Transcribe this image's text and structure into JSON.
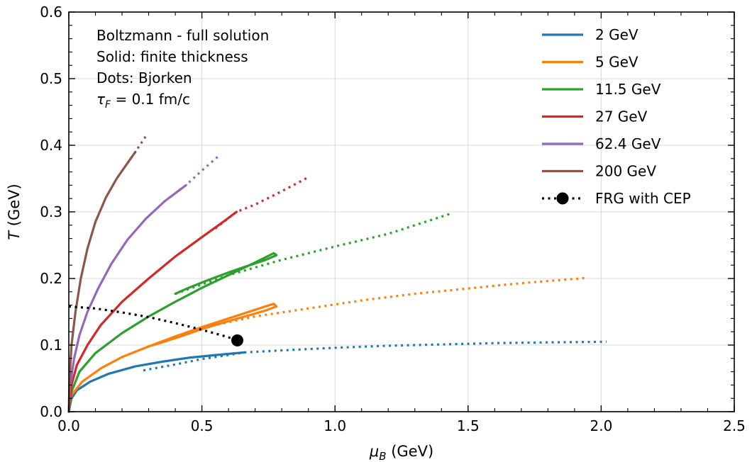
{
  "chart_data": {
    "type": "line",
    "xlabel": "μ_B (GeV)",
    "ylabel": "T (GeV)",
    "xlim": [
      0.0,
      2.5
    ],
    "ylim": [
      0.0,
      0.6
    ],
    "xticks": [
      0.0,
      0.5,
      1.0,
      1.5,
      2.0,
      2.5
    ],
    "xtick_labels": [
      "0.0",
      "0.5",
      "1.0",
      "1.5",
      "2.0",
      "2.5"
    ],
    "yticks": [
      0.0,
      0.1,
      0.2,
      0.3,
      0.4,
      0.5,
      0.6
    ],
    "ytick_labels": [
      "0.0",
      "0.1",
      "0.2",
      "0.3",
      "0.4",
      "0.5",
      "0.6"
    ],
    "grid": true,
    "legend_position": "top-right",
    "annotations": [
      "Boltzmann - full solution",
      "Solid: finite thickness",
      "Dots: Bjorken",
      "τ_F = 0.1 fm/c"
    ],
    "series": [
      {
        "name": "2 GeV",
        "color": "#1f77b4",
        "solid": [
          [
            0.0,
            0.0
          ],
          [
            0.01,
            0.02
          ],
          [
            0.03,
            0.032
          ],
          [
            0.08,
            0.045
          ],
          [
            0.15,
            0.057
          ],
          [
            0.25,
            0.068
          ],
          [
            0.35,
            0.075
          ],
          [
            0.45,
            0.081
          ],
          [
            0.55,
            0.085
          ],
          [
            0.63,
            0.088
          ],
          [
            0.66,
            0.089
          ]
        ],
        "dotted": [
          [
            0.28,
            0.062
          ],
          [
            0.4,
            0.071
          ],
          [
            0.5,
            0.079
          ],
          [
            0.6,
            0.085
          ],
          [
            0.66,
            0.089
          ],
          [
            0.8,
            0.092
          ],
          [
            1.0,
            0.096
          ],
          [
            1.2,
            0.099
          ],
          [
            1.4,
            0.101
          ],
          [
            1.6,
            0.103
          ],
          [
            1.8,
            0.104
          ],
          [
            2.02,
            0.105
          ]
        ]
      },
      {
        "name": "5 GeV",
        "color": "#ff7f0e",
        "solid": [
          [
            0.0,
            0.0
          ],
          [
            0.01,
            0.025
          ],
          [
            0.05,
            0.045
          ],
          [
            0.12,
            0.065
          ],
          [
            0.2,
            0.082
          ],
          [
            0.3,
            0.098
          ],
          [
            0.4,
            0.113
          ],
          [
            0.5,
            0.127
          ],
          [
            0.6,
            0.14
          ],
          [
            0.7,
            0.153
          ],
          [
            0.77,
            0.162
          ],
          [
            0.78,
            0.158
          ],
          [
            0.74,
            0.152
          ],
          [
            0.68,
            0.145
          ],
          [
            0.6,
            0.136
          ],
          [
            0.5,
            0.124
          ],
          [
            0.42,
            0.113
          ],
          [
            0.35,
            0.104
          ],
          [
            0.3,
            0.098
          ]
        ],
        "dotted": [
          [
            0.3,
            0.098
          ],
          [
            0.5,
            0.126
          ],
          [
            0.7,
            0.143
          ],
          [
            0.9,
            0.155
          ],
          [
            1.1,
            0.167
          ],
          [
            1.3,
            0.177
          ],
          [
            1.5,
            0.185
          ],
          [
            1.7,
            0.193
          ],
          [
            1.95,
            0.201
          ]
        ]
      },
      {
        "name": "11.5 GeV",
        "color": "#2ca02c",
        "solid": [
          [
            0.0,
            0.0
          ],
          [
            0.01,
            0.03
          ],
          [
            0.04,
            0.06
          ],
          [
            0.1,
            0.088
          ],
          [
            0.2,
            0.118
          ],
          [
            0.3,
            0.143
          ],
          [
            0.4,
            0.165
          ],
          [
            0.5,
            0.186
          ],
          [
            0.6,
            0.205
          ],
          [
            0.7,
            0.224
          ],
          [
            0.77,
            0.238
          ],
          [
            0.78,
            0.235
          ],
          [
            0.74,
            0.228
          ],
          [
            0.68,
            0.22
          ],
          [
            0.6,
            0.209
          ],
          [
            0.52,
            0.197
          ],
          [
            0.45,
            0.186
          ],
          [
            0.4,
            0.177
          ]
        ],
        "dotted": [
          [
            0.4,
            0.177
          ],
          [
            0.6,
            0.205
          ],
          [
            0.8,
            0.228
          ],
          [
            1.0,
            0.248
          ],
          [
            1.2,
            0.267
          ],
          [
            1.44,
            0.298
          ]
        ]
      },
      {
        "name": "27 GeV",
        "color": "#d62728",
        "solid": [
          [
            0.0,
            0.0
          ],
          [
            0.01,
            0.04
          ],
          [
            0.03,
            0.07
          ],
          [
            0.07,
            0.1
          ],
          [
            0.12,
            0.13
          ],
          [
            0.2,
            0.165
          ],
          [
            0.3,
            0.2
          ],
          [
            0.4,
            0.233
          ],
          [
            0.5,
            0.262
          ],
          [
            0.58,
            0.285
          ],
          [
            0.63,
            0.3
          ]
        ],
        "dotted": [
          [
            0.55,
            0.275
          ],
          [
            0.63,
            0.3
          ],
          [
            0.7,
            0.311
          ],
          [
            0.8,
            0.331
          ],
          [
            0.9,
            0.352
          ]
        ]
      },
      {
        "name": "62.4 GeV",
        "color": "#9467bd",
        "solid": [
          [
            0.0,
            0.0
          ],
          [
            0.005,
            0.04
          ],
          [
            0.02,
            0.08
          ],
          [
            0.04,
            0.115
          ],
          [
            0.07,
            0.15
          ],
          [
            0.11,
            0.185
          ],
          [
            0.16,
            0.222
          ],
          [
            0.22,
            0.258
          ],
          [
            0.29,
            0.29
          ],
          [
            0.36,
            0.316
          ],
          [
            0.44,
            0.34
          ]
        ],
        "dotted": [
          [
            0.38,
            0.322
          ],
          [
            0.44,
            0.34
          ],
          [
            0.5,
            0.362
          ],
          [
            0.56,
            0.383
          ]
        ]
      },
      {
        "name": "200 GeV",
        "color": "#8c564b",
        "solid": [
          [
            0.0,
            0.0
          ],
          [
            0.003,
            0.05
          ],
          [
            0.01,
            0.1
          ],
          [
            0.025,
            0.15
          ],
          [
            0.045,
            0.2
          ],
          [
            0.07,
            0.245
          ],
          [
            0.1,
            0.285
          ],
          [
            0.14,
            0.322
          ],
          [
            0.18,
            0.35
          ],
          [
            0.22,
            0.373
          ],
          [
            0.25,
            0.39
          ]
        ],
        "dotted": [
          [
            0.22,
            0.373
          ],
          [
            0.25,
            0.39
          ],
          [
            0.27,
            0.402
          ],
          [
            0.29,
            0.414
          ]
        ]
      },
      {
        "name": "FRG with CEP",
        "color": "#000000",
        "dotted": [
          [
            0.0,
            0.158
          ],
          [
            0.1,
            0.155
          ],
          [
            0.2,
            0.149
          ],
          [
            0.3,
            0.142
          ],
          [
            0.4,
            0.133
          ],
          [
            0.5,
            0.123
          ],
          [
            0.58,
            0.114
          ],
          [
            0.63,
            0.108
          ]
        ],
        "cep": [
          0.633,
          0.107
        ]
      }
    ]
  }
}
